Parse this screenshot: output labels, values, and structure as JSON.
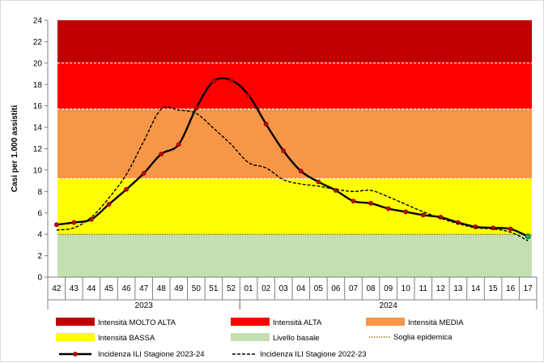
{
  "chart_data": {
    "type": "line",
    "ylabel": "Casi per 1.000 assistiti",
    "ylim": [
      0,
      24
    ],
    "yticks": [
      0,
      2,
      4,
      6,
      8,
      10,
      12,
      14,
      16,
      18,
      20,
      22,
      24
    ],
    "categories": [
      "42",
      "43",
      "44",
      "45",
      "46",
      "47",
      "48",
      "49",
      "50",
      "51",
      "52",
      "01",
      "02",
      "03",
      "04",
      "05",
      "06",
      "07",
      "08",
      "09",
      "10",
      "11",
      "12",
      "13",
      "14",
      "15",
      "16",
      "17"
    ],
    "year_groups": [
      {
        "label": "2023",
        "from": 0,
        "to": 10
      },
      {
        "label": "2024",
        "from": 11,
        "to": 27
      }
    ],
    "bands": [
      {
        "name": "Intensità MOLTO ALTA",
        "from": 20,
        "to": 24,
        "color": "#c00000"
      },
      {
        "name": "Intensità ALTA",
        "from": 15.7,
        "to": 20,
        "color": "#ff0000"
      },
      {
        "name": "Intensità MEDIA",
        "from": 9.2,
        "to": 15.7,
        "color": "#f79646"
      },
      {
        "name": "Intensità BASSA",
        "from": 4,
        "to": 9.2,
        "color": "#ffff00"
      },
      {
        "name": "Livello basale",
        "from": 0,
        "to": 4,
        "color": "#c4e0b2"
      }
    ],
    "threshold": {
      "name": "Soglia epidemica",
      "value": 4,
      "color": "#7f6000"
    },
    "series": [
      {
        "name": "Incidenza ILI Stagione 2023-24",
        "style": "solid-markers",
        "color": "#000000",
        "marker_color": "#c00000",
        "values": [
          4.9,
          5.1,
          5.4,
          6.8,
          8.2,
          9.7,
          11.5,
          12.4,
          15.8,
          18.3,
          18.4,
          17.0,
          14.3,
          11.8,
          9.9,
          8.9,
          8.1,
          7.1,
          6.9,
          6.4,
          6.1,
          5.8,
          5.6,
          5.1,
          4.7,
          4.6,
          4.5,
          3.8
        ]
      },
      {
        "name": "Incidenza ILI Stagione 2022-23",
        "style": "dashed",
        "color": "#000000",
        "values": [
          4.4,
          4.6,
          5.6,
          7.4,
          9.6,
          12.7,
          15.7,
          15.6,
          15.3,
          13.9,
          12.4,
          10.7,
          10.2,
          9.1,
          8.7,
          8.5,
          8.2,
          8.0,
          8.1,
          7.5,
          6.8,
          6.1,
          5.5,
          5.0,
          4.6,
          4.5,
          4.2,
          3.4
        ]
      }
    ]
  }
}
